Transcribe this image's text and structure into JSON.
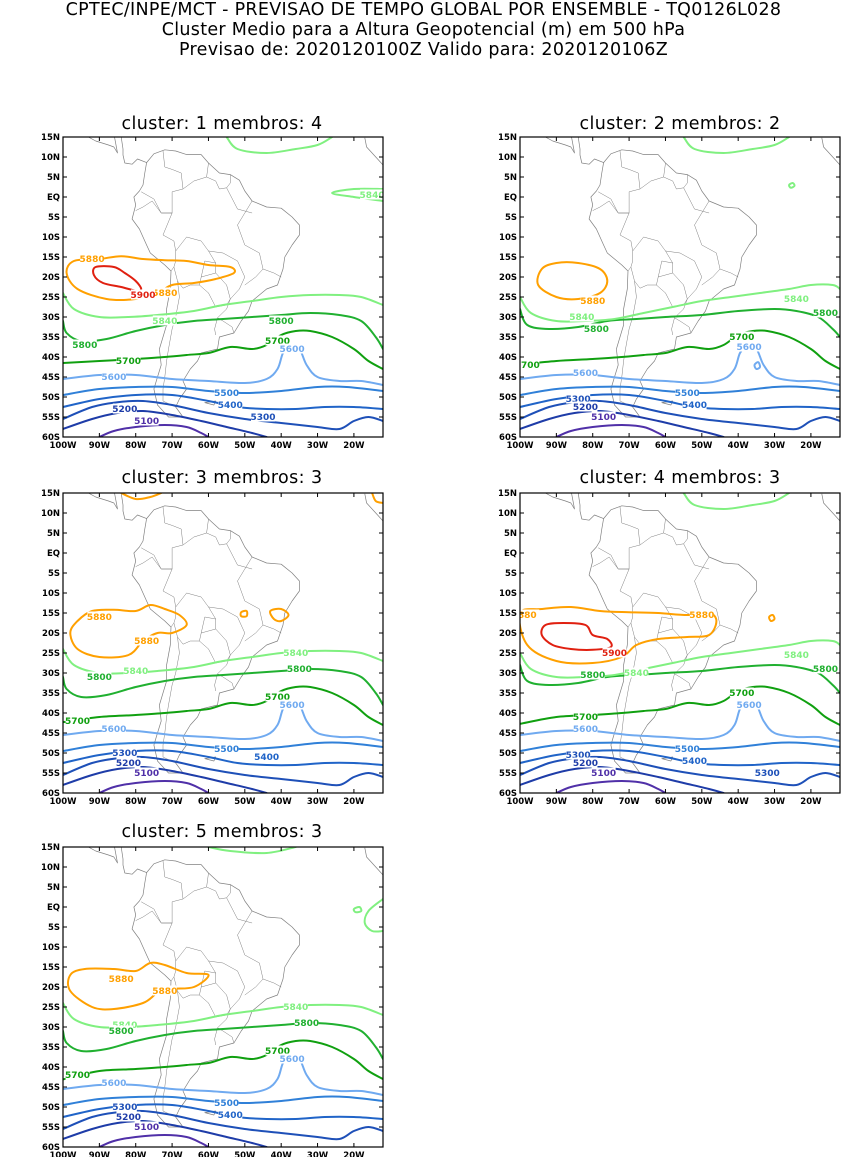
{
  "header": {
    "line1": "CPTEC/INPE/MCT - PREVISAO DE TEMPO GLOBAL POR ENSEMBLE - TQ0126L028",
    "line2": "Cluster Medio para a Altura Geopotencial (m) em 500 hPa",
    "line3": "Previsao de: 2020120100Z    Valido para: 2020120106Z"
  },
  "axes": {
    "lat_labels": [
      "15N",
      "10N",
      "5N",
      "EQ",
      "5S",
      "10S",
      "15S",
      "20S",
      "25S",
      "30S",
      "35S",
      "40S",
      "45S",
      "50S",
      "55S",
      "60S"
    ],
    "lon_labels": [
      "100W",
      "90W",
      "80W",
      "70W",
      "60W",
      "50W",
      "40W",
      "30W",
      "20W"
    ],
    "lat_range": [
      -60,
      15
    ],
    "lon_range": [
      -100,
      -12
    ]
  },
  "colors": {
    "5100": "#5030a8",
    "5200": "#1e3ca8",
    "5300": "#1e50b8",
    "5400": "#2064c8",
    "5500": "#3080d8",
    "5600": "#70aaf0",
    "5700": "#10a010",
    "5800": "#20b030",
    "5840": "#80f080",
    "5880": "#ffa000",
    "5900": "#e02010",
    "coast": "#808080"
  },
  "panels": [
    {
      "title": "cluster: 1   membros: 4",
      "labels": [
        {
          "t": "5880",
          "lon": -92,
          "lat": -15.5,
          "c": "5880"
        },
        {
          "t": "5880",
          "lon": -72,
          "lat": -24,
          "c": "5880"
        },
        {
          "t": "5900",
          "lon": -78,
          "lat": -24.5,
          "c": "5900"
        },
        {
          "t": "5840",
          "lon": -72,
          "lat": -31,
          "c": "5840"
        },
        {
          "t": "5840",
          "lon": -15,
          "lat": 0.5,
          "c": "5840"
        },
        {
          "t": "5800",
          "lon": -40,
          "lat": -31,
          "c": "5800"
        },
        {
          "t": "5800",
          "lon": -94,
          "lat": -37,
          "c": "5800"
        },
        {
          "t": "5700",
          "lon": -82,
          "lat": -41,
          "c": "5700"
        },
        {
          "t": "5700",
          "lon": -41,
          "lat": -36,
          "c": "5700"
        },
        {
          "t": "5600",
          "lon": -86,
          "lat": -45,
          "c": "5600"
        },
        {
          "t": "5600",
          "lon": -37,
          "lat": -38,
          "c": "5600"
        },
        {
          "t": "5500",
          "lon": -55,
          "lat": -49,
          "c": "5500"
        },
        {
          "t": "5400",
          "lon": -54,
          "lat": -52,
          "c": "5400"
        },
        {
          "t": "5300",
          "lon": -45,
          "lat": -55,
          "c": "5300"
        },
        {
          "t": "5200",
          "lon": -83,
          "lat": -53,
          "c": "5200"
        },
        {
          "t": "5100",
          "lon": -77,
          "lat": -56,
          "c": "5100"
        }
      ]
    },
    {
      "title": "cluster: 2   membros: 2",
      "labels": [
        {
          "t": "5880",
          "lon": -80,
          "lat": -26,
          "c": "5880"
        },
        {
          "t": "5840",
          "lon": -83,
          "lat": -30,
          "c": "5840"
        },
        {
          "t": "5840",
          "lon": -24,
          "lat": -25.5,
          "c": "5840"
        },
        {
          "t": "5800",
          "lon": -79,
          "lat": -33,
          "c": "5800"
        },
        {
          "t": "5800",
          "lon": -16,
          "lat": -29,
          "c": "5800"
        },
        {
          "t": "5700",
          "lon": -98,
          "lat": -42,
          "c": "5700"
        },
        {
          "t": "5700",
          "lon": -39,
          "lat": -35,
          "c": "5700"
        },
        {
          "t": "5600",
          "lon": -82,
          "lat": -44,
          "c": "5600"
        },
        {
          "t": "5600",
          "lon": -37,
          "lat": -37.5,
          "c": "5600"
        },
        {
          "t": "5500",
          "lon": -54,
          "lat": -49,
          "c": "5500"
        },
        {
          "t": "5400",
          "lon": -52,
          "lat": -52,
          "c": "5400"
        },
        {
          "t": "5300",
          "lon": -84,
          "lat": -50.5,
          "c": "5300"
        },
        {
          "t": "5200",
          "lon": -82,
          "lat": -52.5,
          "c": "5200"
        },
        {
          "t": "5100",
          "lon": -77,
          "lat": -55,
          "c": "5100"
        }
      ]
    },
    {
      "title": "cluster: 3   membros: 3",
      "labels": [
        {
          "t": "5880",
          "lon": -90,
          "lat": -16,
          "c": "5880"
        },
        {
          "t": "5880",
          "lon": -77,
          "lat": -22,
          "c": "5880"
        },
        {
          "t": "5840",
          "lon": -36,
          "lat": -25,
          "c": "5840"
        },
        {
          "t": "5840",
          "lon": -80,
          "lat": -29.5,
          "c": "5840"
        },
        {
          "t": "5800",
          "lon": -35,
          "lat": -29,
          "c": "5800"
        },
        {
          "t": "5800",
          "lon": -90,
          "lat": -31,
          "c": "5800"
        },
        {
          "t": "5700",
          "lon": -96,
          "lat": -42,
          "c": "5700"
        },
        {
          "t": "5700",
          "lon": -41,
          "lat": -36,
          "c": "5700"
        },
        {
          "t": "5600",
          "lon": -86,
          "lat": -44,
          "c": "5600"
        },
        {
          "t": "5600",
          "lon": -37,
          "lat": -38,
          "c": "5600"
        },
        {
          "t": "5500",
          "lon": -55,
          "lat": -49,
          "c": "5500"
        },
        {
          "t": "5400",
          "lon": -44,
          "lat": -51,
          "c": "5400"
        },
        {
          "t": "5300",
          "lon": -83,
          "lat": -50,
          "c": "5300"
        },
        {
          "t": "5200",
          "lon": -82,
          "lat": -52.5,
          "c": "5200"
        },
        {
          "t": "5100",
          "lon": -77,
          "lat": -55,
          "c": "5100"
        }
      ]
    },
    {
      "title": "cluster: 4   membros: 3",
      "labels": [
        {
          "t": "5880",
          "lon": -50,
          "lat": -15.5,
          "c": "5880"
        },
        {
          "t": "880",
          "lon": -98,
          "lat": -15.5,
          "c": "5880"
        },
        {
          "t": "5900",
          "lon": -74,
          "lat": -25,
          "c": "5900"
        },
        {
          "t": "5840",
          "lon": -24,
          "lat": -25.5,
          "c": "5840"
        },
        {
          "t": "5840",
          "lon": -68,
          "lat": -30,
          "c": "5840"
        },
        {
          "t": "5800",
          "lon": -80,
          "lat": -30.5,
          "c": "5800"
        },
        {
          "t": "5800",
          "lon": -16,
          "lat": -29,
          "c": "5800"
        },
        {
          "t": "5700",
          "lon": -82,
          "lat": -41,
          "c": "5700"
        },
        {
          "t": "5700",
          "lon": -39,
          "lat": -35,
          "c": "5700"
        },
        {
          "t": "5600",
          "lon": -82,
          "lat": -44,
          "c": "5600"
        },
        {
          "t": "5600",
          "lon": -37,
          "lat": -38,
          "c": "5600"
        },
        {
          "t": "5500",
          "lon": -54,
          "lat": -49,
          "c": "5500"
        },
        {
          "t": "5400",
          "lon": -52,
          "lat": -52,
          "c": "5400"
        },
        {
          "t": "5300",
          "lon": -84,
          "lat": -50.5,
          "c": "5300"
        },
        {
          "t": "5300",
          "lon": -32,
          "lat": -55,
          "c": "5300"
        },
        {
          "t": "5200",
          "lon": -82,
          "lat": -52.5,
          "c": "5200"
        },
        {
          "t": "5100",
          "lon": -77,
          "lat": -55,
          "c": "5100"
        }
      ]
    },
    {
      "title": "cluster: 5   membros: 3",
      "labels": [
        {
          "t": "5880",
          "lon": -84,
          "lat": -18,
          "c": "5880"
        },
        {
          "t": "5880",
          "lon": -72,
          "lat": -21,
          "c": "5880"
        },
        {
          "t": "5840",
          "lon": -36,
          "lat": -25,
          "c": "5840"
        },
        {
          "t": "5840",
          "lon": -83,
          "lat": -29.5,
          "c": "5840"
        },
        {
          "t": "5800",
          "lon": -84,
          "lat": -31,
          "c": "5800"
        },
        {
          "t": "5800",
          "lon": -33,
          "lat": -29,
          "c": "5800"
        },
        {
          "t": "5700",
          "lon": -96,
          "lat": -42,
          "c": "5700"
        },
        {
          "t": "5700",
          "lon": -41,
          "lat": -36,
          "c": "5700"
        },
        {
          "t": "5600",
          "lon": -86,
          "lat": -44,
          "c": "5600"
        },
        {
          "t": "5600",
          "lon": -37,
          "lat": -38,
          "c": "5600"
        },
        {
          "t": "5500",
          "lon": -55,
          "lat": -49,
          "c": "5500"
        },
        {
          "t": "5400",
          "lon": -54,
          "lat": -52,
          "c": "5400"
        },
        {
          "t": "5300",
          "lon": -83,
          "lat": -50,
          "c": "5300"
        },
        {
          "t": "5200",
          "lon": -82,
          "lat": -52.5,
          "c": "5200"
        },
        {
          "t": "5100",
          "lon": -77,
          "lat": -55,
          "c": "5100"
        }
      ]
    }
  ]
}
